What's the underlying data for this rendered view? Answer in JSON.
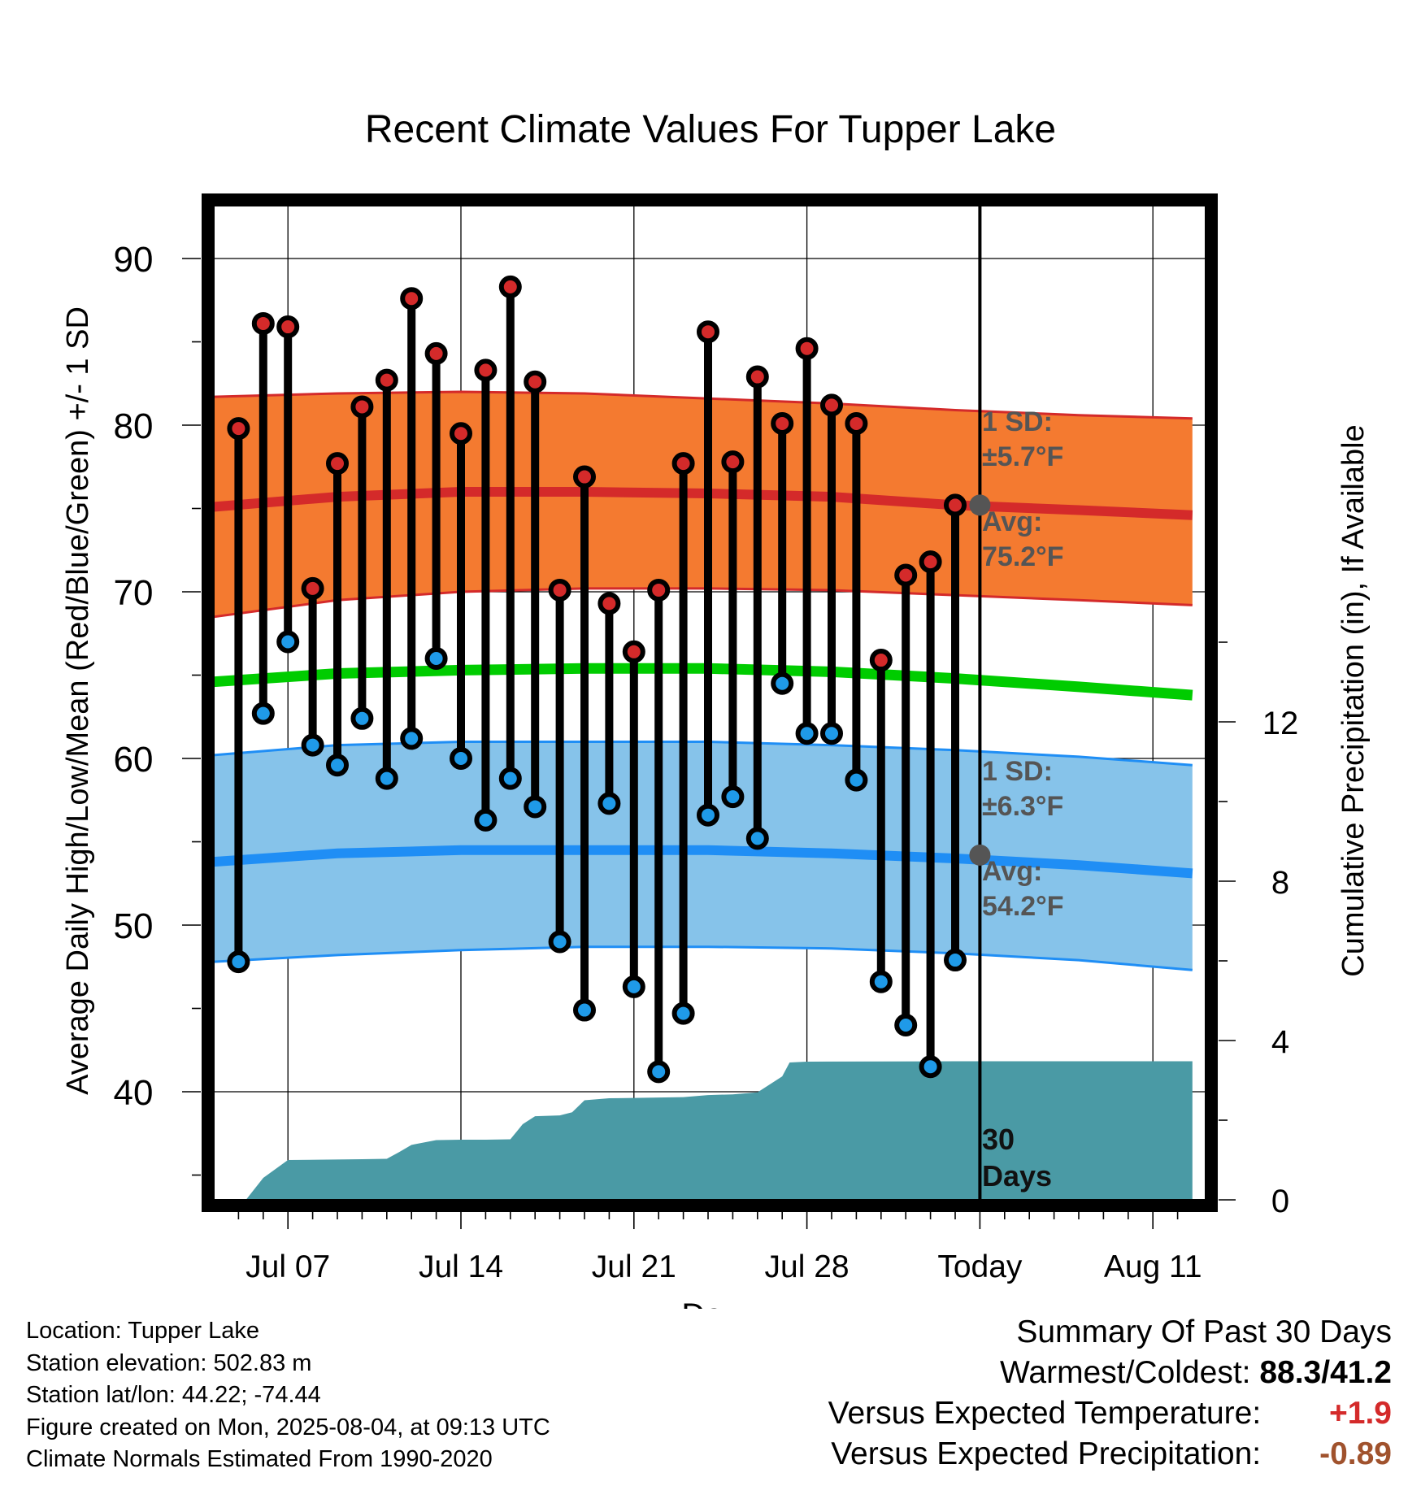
{
  "chart_data": {
    "type": "line",
    "title": "Recent Climate Values For Tupper Lake",
    "xlabel": "Day",
    "ylabel": "Average Daily High/Low/Mean (Red/Blue/Green) +/- 1 SD",
    "y2label": "Cumulative Precipitation (in), If Available",
    "ylim": [
      33.5,
      95
    ],
    "y2lim": [
      -0.2,
      25
    ],
    "y_ticks": [
      40,
      50,
      60,
      70,
      80,
      90
    ],
    "y2_ticks": [
      0,
      4,
      8,
      12
    ],
    "x_tick_labels": [
      {
        "day": 3,
        "label": "Jul 07"
      },
      {
        "day": 10,
        "label": "Jul 14"
      },
      {
        "day": 17,
        "label": "Jul 21"
      },
      {
        "day": 24,
        "label": "Jul 28"
      },
      {
        "day": 31,
        "label": "Today"
      },
      {
        "day": 38,
        "label": "Aug 11"
      }
    ],
    "x_range": [
      0,
      39.6
    ],
    "today_day": 31,
    "grid": true,
    "days": [
      {
        "day": 1,
        "high": 79.8,
        "low": 47.8
      },
      {
        "day": 2,
        "high": 86.1,
        "low": 62.7
      },
      {
        "day": 3,
        "high": 85.9,
        "low": 67.0
      },
      {
        "day": 4,
        "high": 70.2,
        "low": 60.8
      },
      {
        "day": 5,
        "high": 77.7,
        "low": 59.6
      },
      {
        "day": 6,
        "high": 81.1,
        "low": 62.4
      },
      {
        "day": 7,
        "high": 82.7,
        "low": 58.8
      },
      {
        "day": 8,
        "high": 87.6,
        "low": 61.2
      },
      {
        "day": 9,
        "high": 84.3,
        "low": 66.0
      },
      {
        "day": 10,
        "high": 79.5,
        "low": 60.0
      },
      {
        "day": 11,
        "high": 83.3,
        "low": 56.3
      },
      {
        "day": 12,
        "high": 88.3,
        "low": 58.8
      },
      {
        "day": 13,
        "high": 82.6,
        "low": 57.1
      },
      {
        "day": 14,
        "high": 70.1,
        "low": 49.0
      },
      {
        "day": 15,
        "high": 76.9,
        "low": 44.9
      },
      {
        "day": 16,
        "high": 69.3,
        "low": 57.3
      },
      {
        "day": 17,
        "high": 66.4,
        "low": 46.3
      },
      {
        "day": 18,
        "high": 70.1,
        "low": 41.2
      },
      {
        "day": 19,
        "high": 77.7,
        "low": 44.7
      },
      {
        "day": 20,
        "high": 85.6,
        "low": 56.6
      },
      {
        "day": 21,
        "high": 77.8,
        "low": 57.7
      },
      {
        "day": 22,
        "high": 82.9,
        "low": 55.2
      },
      {
        "day": 23,
        "high": 80.1,
        "low": 64.5
      },
      {
        "day": 24,
        "high": 84.6,
        "low": 61.5
      },
      {
        "day": 25,
        "high": 81.2,
        "low": 61.5
      },
      {
        "day": 26,
        "high": 80.1,
        "low": 58.7
      },
      {
        "day": 27,
        "high": 65.9,
        "low": 46.6
      },
      {
        "day": 28,
        "high": 71.0,
        "low": 44.0
      },
      {
        "day": 29,
        "high": 71.8,
        "low": 41.5
      },
      {
        "day": 30,
        "high": 75.2,
        "low": 47.9
      }
    ],
    "normals": {
      "x": [
        0,
        5,
        10,
        15,
        20,
        25,
        30,
        35,
        39.6
      ],
      "avg_high": [
        75.1,
        75.7,
        76.0,
        76.0,
        75.9,
        75.7,
        75.2,
        74.9,
        74.6
      ],
      "high_sd_upper": [
        81.7,
        81.9,
        82.0,
        81.9,
        81.6,
        81.3,
        80.9,
        80.6,
        80.4
      ],
      "high_sd_lower": [
        68.5,
        69.5,
        70.0,
        70.2,
        70.2,
        70.1,
        69.8,
        69.5,
        69.2
      ],
      "avg_mean": [
        64.6,
        65.1,
        65.3,
        65.4,
        65.4,
        65.2,
        64.8,
        64.3,
        63.8
      ],
      "avg_low": [
        53.8,
        54.3,
        54.5,
        54.5,
        54.5,
        54.3,
        54.0,
        53.6,
        53.1
      ],
      "low_sd_upper": [
        60.2,
        60.8,
        61.0,
        61.0,
        61.0,
        60.8,
        60.5,
        60.1,
        59.6
      ],
      "low_sd_lower": [
        47.8,
        48.2,
        48.5,
        48.7,
        48.7,
        48.6,
        48.3,
        47.9,
        47.3
      ]
    },
    "precipitation": {
      "x": [
        1.3,
        2.0,
        3.0,
        6.0,
        7.0,
        7.5,
        8.0,
        9.0,
        10.0,
        11.0,
        12.0,
        12.5,
        13.0,
        14.0,
        14.5,
        15.0,
        16.0,
        17.0,
        18.0,
        19.0,
        20.0,
        21.0,
        22.0,
        23.0,
        23.3,
        24.0,
        30.0,
        31.0,
        39.6
      ],
      "y": [
        0.0,
        0.55,
        1.0,
        1.02,
        1.03,
        1.2,
        1.38,
        1.5,
        1.51,
        1.51,
        1.52,
        1.9,
        2.1,
        2.12,
        2.2,
        2.5,
        2.55,
        2.56,
        2.57,
        2.58,
        2.63,
        2.65,
        2.7,
        3.1,
        3.45,
        3.47,
        3.48,
        3.48,
        3.48
      ]
    },
    "annotations": {
      "high_sd_label": "1 SD:",
      "high_sd_value": "±5.7°F",
      "high_avg_label": "Avg:",
      "high_avg_value": "75.2°F",
      "low_sd_label": "1 SD:",
      "low_sd_value": "±6.3°F",
      "low_avg_label": "Avg:",
      "low_avg_value": "54.2°F",
      "days_number": "30",
      "days_word": "Days"
    },
    "today_avg_high": 75.2,
    "today_avg_low": 54.2,
    "colors": {
      "high_band": "#f47a30",
      "high_line": "#d42a2a",
      "low_band": "#86c3ea",
      "low_line": "#1f8ef5",
      "mean_line": "#00cc00",
      "precip": "#4a9aa5",
      "high_dot": "#d42a2a",
      "low_dot": "#1f9ae8",
      "annotation": "#555555"
    }
  },
  "footer": {
    "location": "Location: Tupper Lake",
    "elevation": "Station elevation: 502.83 m",
    "latlon": "Station lat/lon: 44.22; -74.44",
    "created": "Figure created on Mon, 2025-08-04, at 09:13 UTC",
    "normals": "Climate Normals Estimated From 1990-2020"
  },
  "summary": {
    "title": "Summary Of Past 30 Days",
    "warmest_label": "Warmest/Coldest:",
    "warmest_value": "88.3/41.2",
    "temp_label": "Versus Expected Temperature:",
    "temp_value": "+1.9",
    "temp_color": "#d42a2a",
    "precip_label": "Versus Expected Precipitation:",
    "precip_value": "-0.89",
    "precip_color": "#a0522d"
  }
}
